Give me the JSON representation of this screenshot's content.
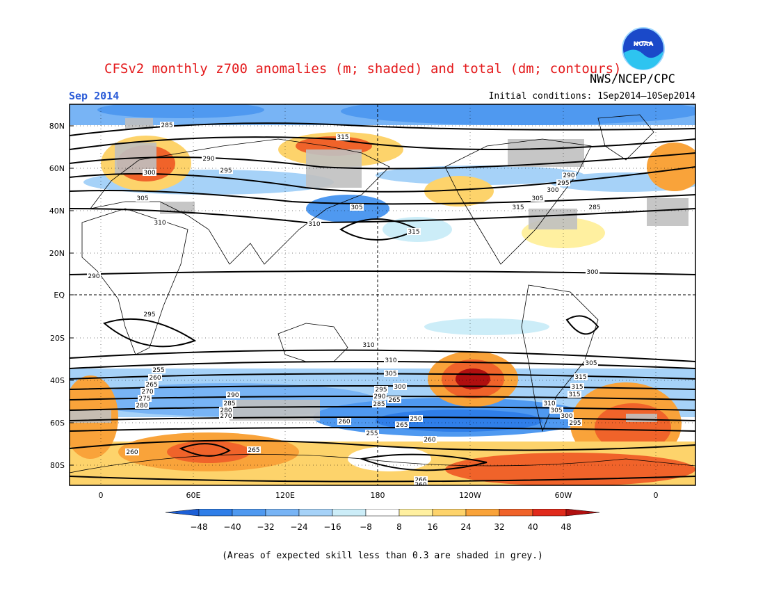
{
  "header": {
    "title": "CFSv2 monthly z700 anomalies (m; shaded) and total (dm; contours)",
    "agency": "NWS/NCEP/CPC",
    "logo_text": "NOAA",
    "month": "Sep 2014",
    "initial_conditions": "Initial conditions: 1Sep2014–10Sep2014"
  },
  "axes": {
    "lat_labels": [
      "80N",
      "60N",
      "40N",
      "20N",
      "EQ",
      "20S",
      "40S",
      "60S",
      "80S"
    ],
    "lon_labels": [
      "0",
      "60E",
      "120E",
      "180",
      "120W",
      "60W",
      "0"
    ]
  },
  "colorbar": {
    "labels": [
      "-48",
      "-40",
      "-32",
      "-24",
      "-16",
      "-8",
      "8",
      "16",
      "24",
      "32",
      "40",
      "48"
    ],
    "colors": [
      "#1c5fd6",
      "#2f7ee8",
      "#4f99f0",
      "#78b4f5",
      "#a6d2f8",
      "#ccedf8",
      "#ffffff",
      "#fff0a0",
      "#fdd36b",
      "#f9a33a",
      "#f0632a",
      "#e02a1b",
      "#b00f0f"
    ]
  },
  "contour_labels": [
    "285",
    "290",
    "300",
    "305",
    "310",
    "315",
    "295",
    "305",
    "310",
    "315",
    "290",
    "295",
    "300",
    "305",
    "315",
    "285",
    "290",
    "295",
    "300",
    "305",
    "310",
    "315",
    "315",
    "315",
    "310",
    "305",
    "300",
    "295",
    "290",
    "285",
    "280",
    "270",
    "260",
    "265",
    "255",
    "260",
    "265",
    "250",
    "255",
    "260",
    "265",
    "270",
    "275",
    "280",
    "285",
    "290",
    "295",
    "300",
    "305",
    "310",
    "260",
    "265",
    "266",
    "260"
  ],
  "grey_note": "(Areas of expected skill less than 0.3 are shaded in grey.)",
  "colors": {
    "title": "#e41a1c",
    "month": "#2a5bd7",
    "grey_skill": "#c0c0c0"
  }
}
